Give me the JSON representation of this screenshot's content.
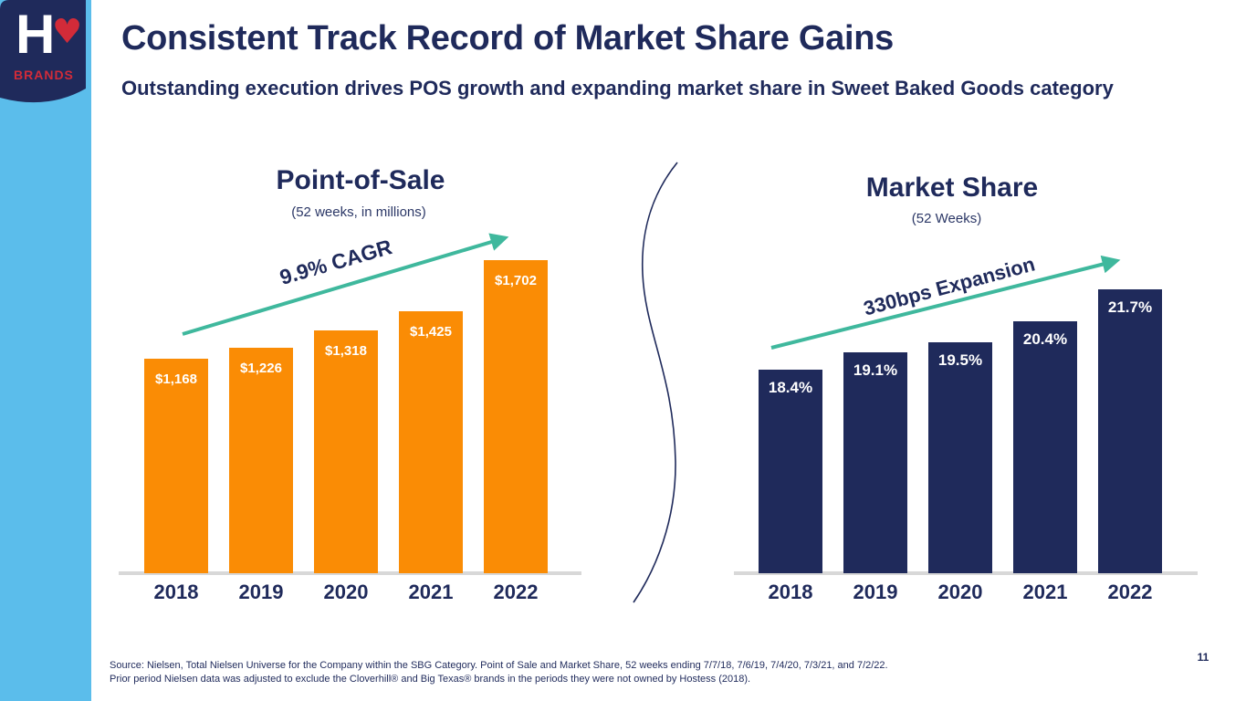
{
  "slide": {
    "title": "Consistent Track Record of Market Share Gains",
    "subtitle": "Outstanding execution drives POS growth and expanding market share in Sweet Baked Goods category",
    "page_number": "11",
    "footnote_line1": "Source: Nielsen, Total Nielsen Universe for the Company within the SBG Category. Point of Sale and Market Share, 52 weeks ending 7/7/18, 7/6/19, 7/4/20, 7/3/21, and 7/2/22.",
    "footnote_line2": "Prior period Nielsen data was adjusted to exclude the Cloverhill® and Big Texas® brands in the periods they were not owned by Hostess (2018)."
  },
  "logo": {
    "letter": "H",
    "heart": "♥",
    "brands": "BRANDS"
  },
  "colors": {
    "navy": "#1F2A5B",
    "orange": "#FA8C05",
    "light_blue": "#5BBDEB",
    "teal": "#3FB89D",
    "red": "#D22B39",
    "axis_gray": "#D8D8D8"
  },
  "chart_data": [
    {
      "type": "bar",
      "title": "Point-of-Sale",
      "subtitle": "(52 weeks, in millions)",
      "categories": [
        "2018",
        "2019",
        "2020",
        "2021",
        "2022"
      ],
      "values": [
        1168,
        1226,
        1318,
        1425,
        1702
      ],
      "labels": [
        "$1,168",
        "$1,226",
        "$1,318",
        "$1,425",
        "$1,702"
      ],
      "annotation": "9.9% CAGR",
      "bar_color": "#FA8C05",
      "ylim": [
        0,
        1702
      ],
      "grid": false,
      "legend": false
    },
    {
      "type": "bar",
      "title": "Market Share",
      "subtitle": "(52 Weeks)",
      "categories": [
        "2018",
        "2019",
        "2020",
        "2021",
        "2022"
      ],
      "values": [
        18.4,
        19.1,
        19.5,
        20.4,
        21.7
      ],
      "labels": [
        "18.4%",
        "19.1%",
        "19.5%",
        "20.4%",
        "21.7%"
      ],
      "annotation": "330bps Expansion",
      "bar_color": "#1F2A5B",
      "ylim": [
        10,
        21.7
      ],
      "grid": false,
      "legend": false
    }
  ]
}
